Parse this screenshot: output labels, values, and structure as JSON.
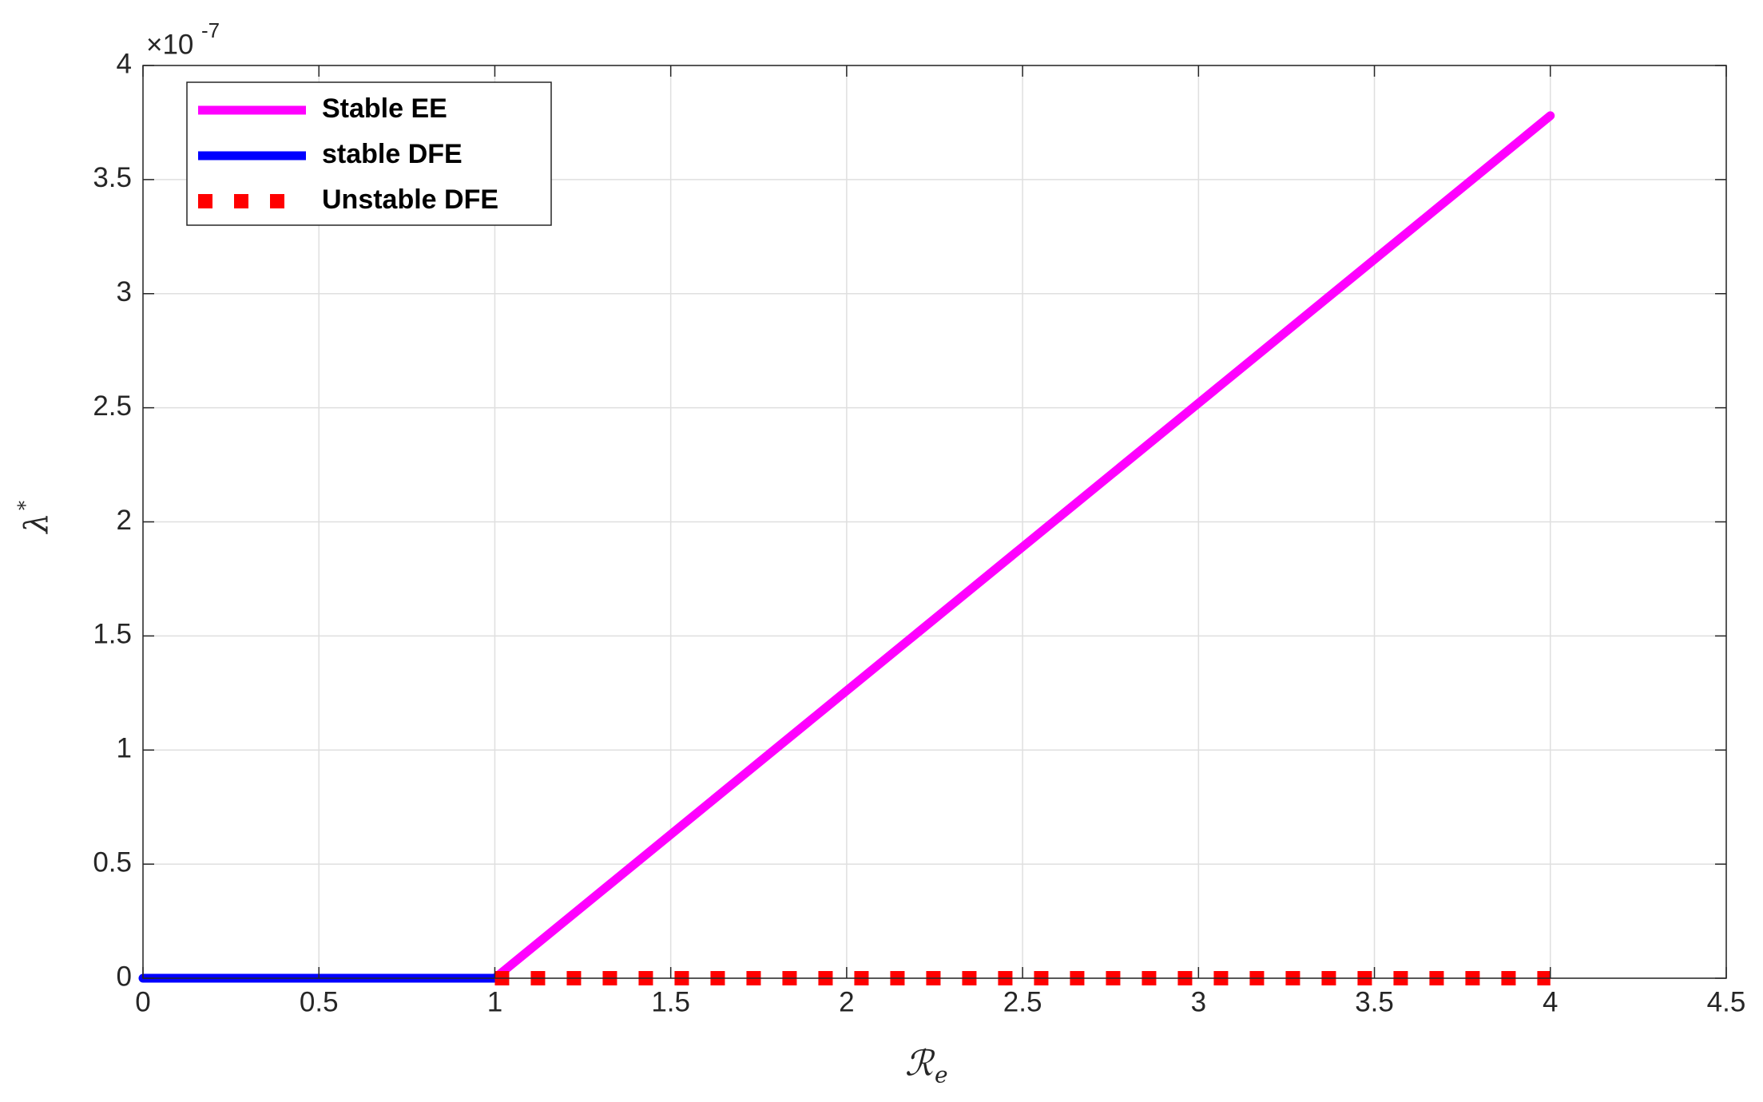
{
  "chart_data": {
    "type": "line",
    "xlabel": "ℛ",
    "xlabel_subscript": "e",
    "ylabel": "λ",
    "ylabel_superscript": "*",
    "y_exponent_base": "×10",
    "y_exponent": "-7",
    "xlim": [
      0,
      4.5
    ],
    "xticks": [
      0,
      0.5,
      1,
      1.5,
      2,
      2.5,
      3,
      3.5,
      4,
      4.5
    ],
    "ylim": [
      0,
      4
    ],
    "yticks": [
      0,
      0.5,
      1,
      1.5,
      2,
      2.5,
      3,
      3.5,
      4
    ],
    "grid": true,
    "legend": "northwest",
    "series": [
      {
        "name": "Stable EE",
        "color": "#ff00ff",
        "style": "solid",
        "x": [
          1,
          4
        ],
        "values": [
          0,
          3.78
        ]
      },
      {
        "name": "stable DFE",
        "color": "#0000ff",
        "style": "solid",
        "x": [
          0,
          1
        ],
        "values": [
          0,
          0
        ]
      },
      {
        "name": "Unstable DFE",
        "color": "#ff0000",
        "style": "dotted",
        "x": [
          1,
          4
        ],
        "values": [
          0,
          0
        ]
      }
    ]
  }
}
